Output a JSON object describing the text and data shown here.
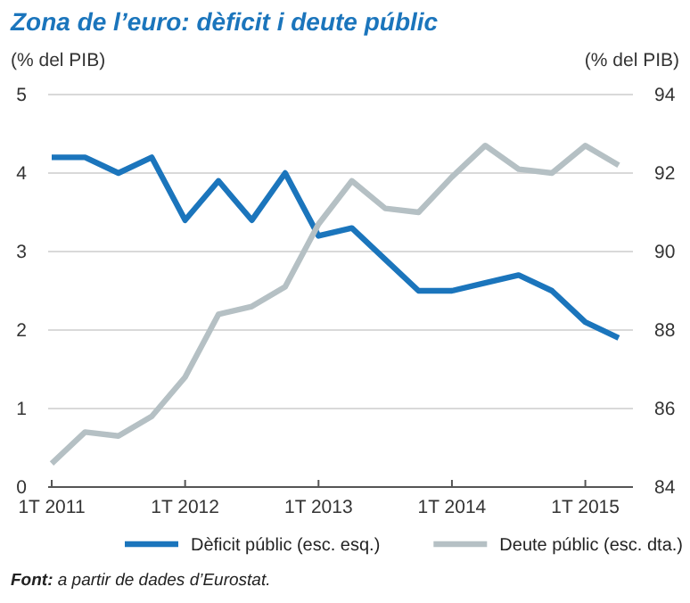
{
  "chart_data": {
    "type": "line",
    "title": "Zona de l’euro: dèficit i deute públic",
    "ylabel": "(% del PIB)",
    "y2label": "(% del PIB)",
    "categories": [
      "1T 2011",
      null,
      null,
      null,
      "1T 2012",
      null,
      null,
      null,
      "1T 2013",
      null,
      null,
      null,
      "1T 2014",
      null,
      null,
      null,
      "1T 2015",
      null
    ],
    "series": [
      {
        "name": "Dèficit públic (esc. esq.)",
        "color": "#1b75bc",
        "values": [
          4.2,
          4.2,
          4.0,
          4.2,
          3.4,
          3.9,
          3.4,
          4.0,
          3.2,
          3.3,
          2.9,
          2.5,
          2.5,
          2.6,
          2.7,
          2.5,
          2.1,
          1.9
        ]
      },
      {
        "name": "Deute públic (esc. dta.)",
        "color": "#b5c0c4",
        "axis": "y2",
        "values": [
          84.6,
          85.4,
          85.3,
          85.8,
          86.8,
          88.4,
          88.6,
          89.1,
          90.7,
          91.8,
          91.1,
          91.0,
          91.9,
          92.7,
          92.1,
          92.0,
          92.7,
          92.2
        ]
      }
    ],
    "ylim": [
      0,
      5
    ],
    "yticks": [
      0,
      1,
      2,
      3,
      4,
      5
    ],
    "y2lim": [
      84,
      94
    ],
    "y2ticks": [
      84,
      86,
      88,
      90,
      92,
      94
    ],
    "grid": "y",
    "legend": "bottom",
    "line_style": "solid",
    "marker": "none",
    "annotations": [
      "Font: a partir de dades d’Eurostat."
    ]
  }
}
